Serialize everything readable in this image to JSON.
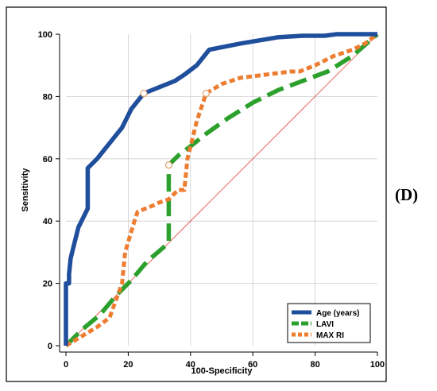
{
  "chart_data": {
    "type": "line",
    "title": "",
    "xlabel": "100-Specificity",
    "ylabel": "Sensitivity",
    "xlim": [
      0,
      100
    ],
    "ylim": [
      0,
      100
    ],
    "x_ticks": [
      "0",
      "20",
      "40",
      "60",
      "80",
      "100"
    ],
    "y_ticks": [
      "0",
      "20",
      "40",
      "60",
      "80",
      "100"
    ],
    "grid": true,
    "legend_position": "bottom-right",
    "reference_line": {
      "from": [
        0,
        0
      ],
      "to": [
        100,
        100
      ],
      "color": "#e8453c"
    },
    "series": [
      {
        "name": "Age (years)",
        "color": "#1f4e9c",
        "style": "solid",
        "x": [
          0,
          0,
          1,
          1,
          1.5,
          2,
          4,
          7,
          7,
          10,
          14,
          18,
          21,
          25,
          35,
          38,
          42,
          46,
          56,
          68,
          76,
          83,
          87,
          100
        ],
        "y": [
          0,
          20,
          20,
          23,
          28,
          30,
          38,
          44,
          57,
          60,
          65,
          70,
          76,
          81,
          85,
          87,
          90,
          95,
          97,
          99,
          99.5,
          99.5,
          100,
          100
        ],
        "marker": {
          "x": 25,
          "y": 81
        }
      },
      {
        "name": "LAVI",
        "color": "#2ca02c",
        "style": "dashed",
        "x": [
          0,
          5,
          11,
          16,
          21,
          26,
          33,
          33,
          36,
          40,
          45,
          52,
          60,
          68,
          76,
          84,
          92,
          100
        ],
        "y": [
          0,
          5,
          10,
          16,
          21,
          27,
          33,
          58,
          61,
          64,
          68,
          73,
          78,
          82,
          85,
          88,
          93,
          100
        ],
        "marker": {
          "x": 33,
          "y": 58
        }
      },
      {
        "name": "MAX RI",
        "color": "#ed7d31",
        "style": "dotted",
        "x": [
          0,
          5,
          10,
          14,
          18,
          19,
          22,
          23,
          28,
          30,
          33,
          36,
          38,
          39,
          42,
          45,
          50,
          56,
          64,
          72,
          75,
          80,
          86,
          92,
          96,
          100
        ],
        "y": [
          0,
          3,
          6,
          9,
          20,
          30,
          40,
          43,
          45,
          46,
          47,
          50,
          50,
          60,
          72,
          81,
          84,
          86,
          87,
          88,
          88,
          90,
          93,
          95,
          97,
          100
        ],
        "marker": {
          "x": 45,
          "y": 81
        }
      }
    ]
  },
  "panel_label": "(D)",
  "colors": {
    "grid": "#cfcfcf",
    "axis": "#000000",
    "frame": "#000000"
  }
}
